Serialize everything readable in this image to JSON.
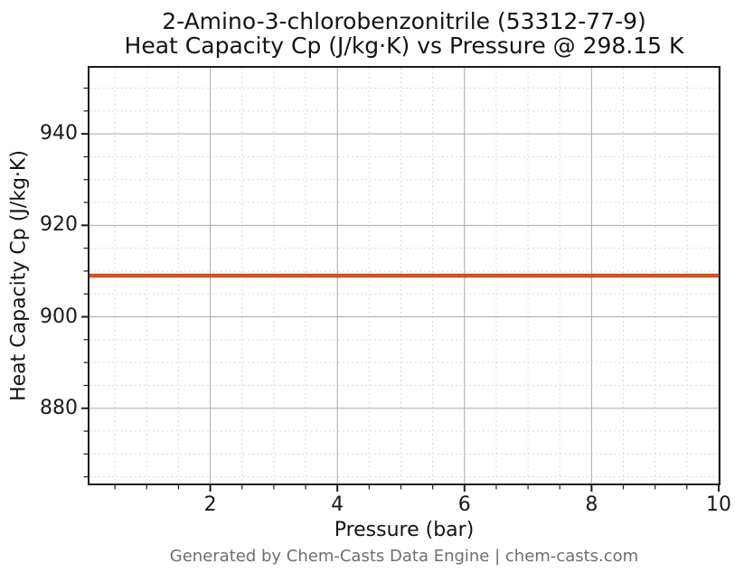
{
  "figure": {
    "title_line1": "2-Amino-3-chlorobenzonitrile (53312-77-9)",
    "title_line2": "Heat Capacity Cp (J/kg·K) vs Pressure @ 298.15 K",
    "footer": "Generated by Chem-Casts Data Engine | chem-casts.com"
  },
  "chart_data": {
    "type": "line",
    "title": "2-Amino-3-chlorobenzonitrile (53312-77-9)",
    "subtitle": "Heat Capacity Cp (J/kg·K) vs Pressure @ 298.15 K",
    "xlabel": "Pressure (bar)",
    "ylabel": "Heat Capacity Cp (J/kg·K)",
    "x": [
      0.1,
      1,
      2,
      3,
      4,
      5,
      6,
      7,
      8,
      9,
      10
    ],
    "series": [
      {
        "name": "Heat Capacity Cp",
        "values": [
          909,
          909,
          909,
          909,
          909,
          909,
          909,
          909,
          909,
          909,
          909
        ]
      }
    ],
    "xlim": [
      0.1,
      10
    ],
    "ylim": [
      863.55,
      954.45
    ],
    "xticks": [
      2,
      4,
      6,
      8,
      10
    ],
    "yticks": [
      880,
      900,
      920,
      940
    ],
    "minor_x_step": 0.5,
    "minor_y_step": 5,
    "grid": {
      "major": true,
      "minor": true
    },
    "legend_position": "none"
  },
  "style": {
    "line_color": "#cf5222",
    "major_grid_color": "#aaaaaa",
    "minor_grid_color": "#dcdcdc",
    "spine_color": "#1c1c1c",
    "tick_color": "#1c1c1c",
    "text_color": "#141414",
    "footer_color": "#6e6e6e",
    "background_color": "#ffffff"
  }
}
